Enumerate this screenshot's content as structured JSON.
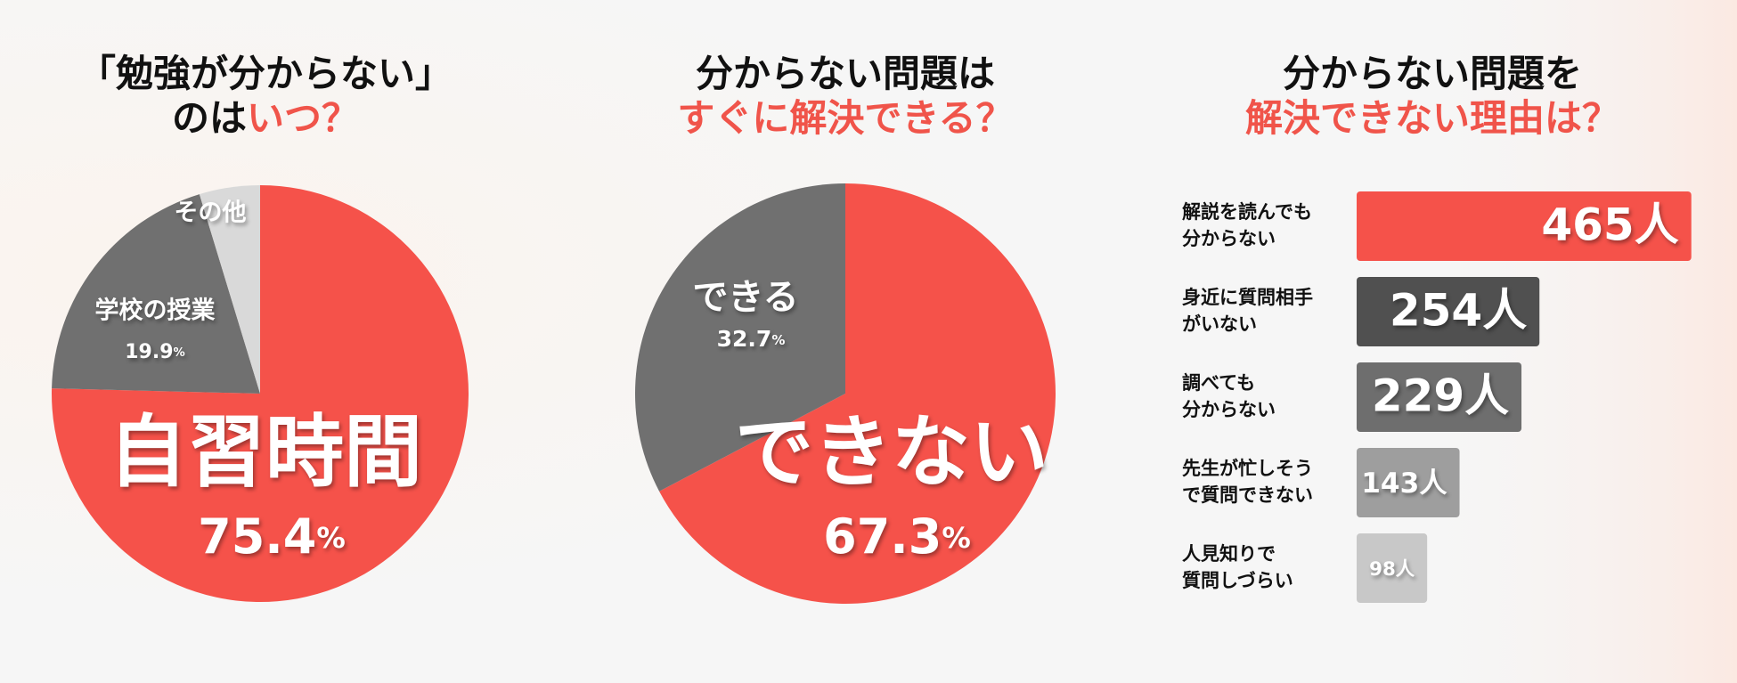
{
  "chart_data": [
    {
      "type": "pie",
      "title_lines": [
        [
          {
            "text": "「勉強が分からない」",
            "color": "#111111"
          }
        ],
        [
          {
            "text": "のは",
            "color": "#111111"
          },
          {
            "text": "いつ？",
            "color": "#f0544a"
          }
        ]
      ],
      "categories": [
        "自習時間",
        "学校の授業",
        "その他"
      ],
      "values": [
        75.4,
        19.9,
        4.7
      ],
      "value_labels": [
        "75.4%",
        "19.9%",
        null
      ],
      "colors": [
        "#f5524a",
        "#707070",
        "#d9d9d9"
      ]
    },
    {
      "type": "pie",
      "title_lines": [
        [
          {
            "text": "分からない問題は",
            "color": "#111111"
          }
        ],
        [
          {
            "text": "すぐに解決できる？",
            "color": "#f0544a"
          }
        ]
      ],
      "categories": [
        "できない",
        "できる"
      ],
      "values": [
        67.3,
        32.7
      ],
      "value_labels": [
        "67.3%",
        "32.7%"
      ],
      "colors": [
        "#f5524a",
        "#707070"
      ]
    },
    {
      "type": "hbar",
      "title_lines": [
        [
          {
            "text": "分からない問題を",
            "color": "#111111"
          }
        ],
        [
          {
            "text": "解決できない理由は？",
            "color": "#f0544a"
          }
        ]
      ],
      "categories": [
        "解説を読んでも\n分からない",
        "身近に質問相手\nがいない",
        "調べても\n分からない",
        "先生が忙しそう\nで質問できない",
        "人見知りで\n質問しづらい"
      ],
      "values": [
        465,
        254,
        229,
        143,
        98
      ],
      "value_labels": [
        "465人",
        "254人",
        "229人",
        "143人",
        "98人"
      ],
      "colors": [
        "#f5524a",
        "#505050",
        "#6e6e6e",
        "#9e9e9e",
        "#c8c8c8"
      ]
    }
  ]
}
